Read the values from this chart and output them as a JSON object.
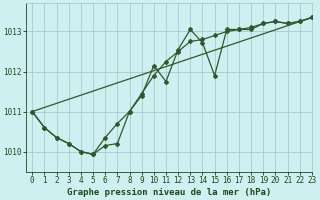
{
  "title": "Graphe pression niveau de la mer (hPa)",
  "bg_color": "#cff0f0",
  "line_color": "#2d5a2d",
  "grid_color": "#9ecece",
  "text_color": "#1a4a1a",
  "xlim": [
    -0.5,
    23
  ],
  "ylim": [
    1009.5,
    1013.7
  ],
  "yticks": [
    1010,
    1011,
    1012,
    1013
  ],
  "xticks": [
    0,
    1,
    2,
    3,
    4,
    5,
    6,
    7,
    8,
    9,
    10,
    11,
    12,
    13,
    14,
    15,
    16,
    17,
    18,
    19,
    20,
    21,
    22,
    23
  ],
  "series1_x": [
    0,
    1,
    2,
    3,
    4,
    5,
    6,
    7,
    8,
    9,
    10,
    11,
    12,
    13,
    14,
    15,
    16,
    17,
    18,
    19,
    20,
    21,
    22,
    23
  ],
  "series1_y": [
    1011.0,
    1010.6,
    1010.35,
    1010.2,
    1010.0,
    1009.93,
    1010.15,
    1010.2,
    1011.0,
    1011.4,
    1012.15,
    1011.75,
    1012.55,
    1013.05,
    1012.72,
    1011.9,
    1013.05,
    1013.05,
    1013.05,
    1013.2,
    1013.25,
    1013.2,
    1013.25,
    1013.35
  ],
  "series2_x": [
    0,
    1,
    2,
    3,
    4,
    5,
    6,
    7,
    8,
    9,
    10,
    11,
    12,
    13,
    14,
    15,
    16,
    17,
    18,
    19,
    20,
    21,
    22,
    23
  ],
  "series2_y": [
    1011.0,
    1010.6,
    1010.35,
    1010.2,
    1010.0,
    1009.93,
    1010.35,
    1010.7,
    1011.0,
    1011.45,
    1011.9,
    1012.25,
    1012.5,
    1012.75,
    1012.8,
    1012.9,
    1013.0,
    1013.05,
    1013.1,
    1013.2,
    1013.25,
    1013.2,
    1013.25,
    1013.35
  ],
  "trend_x": [
    0,
    23
  ],
  "trend_y": [
    1011.0,
    1013.35
  ],
  "tick_fontsize": 5.5,
  "title_fontsize": 6.5
}
